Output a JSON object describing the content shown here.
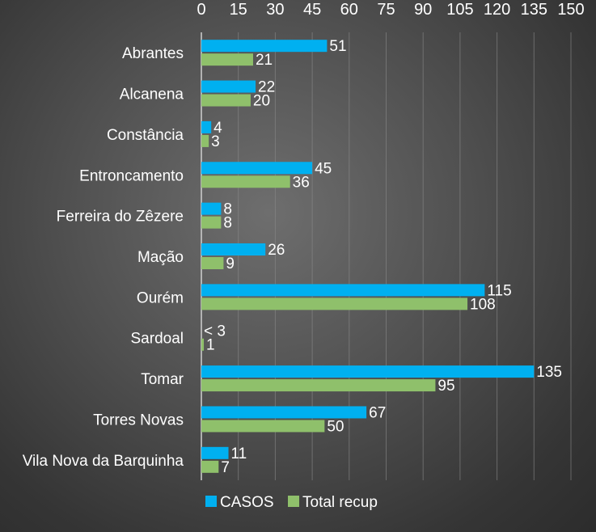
{
  "chart_data": {
    "type": "bar",
    "orientation": "horizontal",
    "x_axis_position": "top",
    "grid": true,
    "legend_position": "bottom",
    "xlim": [
      0,
      150
    ],
    "ticks": [
      "0",
      "15",
      "30",
      "45",
      "60",
      "75",
      "90",
      "105",
      "120",
      "135",
      "150"
    ],
    "categories": [
      "Abrantes",
      "Alcanena",
      "Constância",
      "Entroncamento",
      "Ferreira do Zêzere",
      "Mação",
      "Ourém",
      "Sardoal",
      "Tomar",
      "Torres Novas",
      "Vila Nova da Barquinha"
    ],
    "series": [
      {
        "name": "CASOS",
        "color": "#00b0f0",
        "values": [
          51,
          22,
          4,
          45,
          8,
          26,
          115,
          null,
          135,
          67,
          11
        ],
        "labels": [
          "51",
          "22",
          "4",
          "45",
          "8",
          "26",
          "115",
          "< 3",
          "135",
          "67",
          "11"
        ]
      },
      {
        "name": "Total recup",
        "color": "#8fc06b",
        "values": [
          21,
          20,
          3,
          36,
          8,
          9,
          108,
          1,
          95,
          50,
          7
        ],
        "labels": [
          "21",
          "20",
          "3",
          "36",
          "8",
          "9",
          "108",
          "1",
          "95",
          "50",
          "7"
        ]
      }
    ]
  }
}
